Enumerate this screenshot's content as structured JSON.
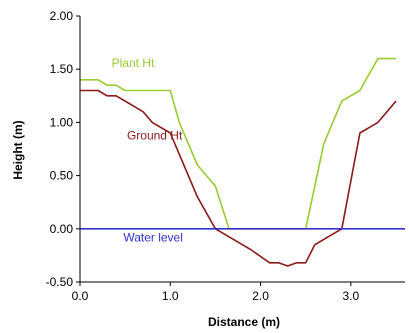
{
  "chart_data": {
    "type": "line",
    "title": "",
    "xlabel": "Distance (m)",
    "ylabel": "Height (m)",
    "xlim": [
      0,
      3.6
    ],
    "ylim": [
      -0.5,
      2.0
    ],
    "x_ticks": [
      0.0,
      1.0,
      2.0,
      3.0
    ],
    "x_tick_labels": [
      "0.0",
      "1.0",
      "2.0",
      "3.0"
    ],
    "y_ticks": [
      -0.5,
      0.0,
      0.5,
      1.0,
      1.5,
      2.0
    ],
    "y_tick_labels": [
      "-0.50",
      "0.00",
      "0.50",
      "1.00",
      "1.50",
      "2.00"
    ],
    "grid": false,
    "legend": "none",
    "series": [
      {
        "name": "Plant Ht",
        "color": "#99cc33",
        "x": [
          0.0,
          0.2,
          0.3,
          0.4,
          0.5,
          0.6,
          0.8,
          1.0,
          1.1,
          1.3,
          1.5,
          1.65,
          1.7,
          2.0,
          2.3,
          2.5,
          2.7,
          2.9,
          3.1,
          3.3,
          3.5
        ],
        "y": [
          1.4,
          1.4,
          1.35,
          1.35,
          1.3,
          1.3,
          1.3,
          1.3,
          1.0,
          0.6,
          0.4,
          0.0,
          0.0,
          0.0,
          0.0,
          0.0,
          0.8,
          1.2,
          1.3,
          1.6,
          1.6
        ]
      },
      {
        "name": "Ground Ht",
        "color": "#8b1a1a",
        "x": [
          0.0,
          0.2,
          0.3,
          0.4,
          0.5,
          0.7,
          0.8,
          1.0,
          1.1,
          1.3,
          1.5,
          1.7,
          1.9,
          2.1,
          2.2,
          2.3,
          2.4,
          2.5,
          2.6,
          2.8,
          2.9,
          3.1,
          3.3,
          3.5
        ],
        "y": [
          1.3,
          1.3,
          1.25,
          1.25,
          1.2,
          1.1,
          1.0,
          0.9,
          0.7,
          0.3,
          0.0,
          -0.1,
          -0.2,
          -0.32,
          -0.32,
          -0.35,
          -0.32,
          -0.32,
          -0.15,
          -0.05,
          0.0,
          0.9,
          1.0,
          1.2
        ]
      },
      {
        "name": "Water level",
        "color": "#3333cc",
        "x": [
          0.0,
          3.6
        ],
        "y": [
          0.0,
          0.0
        ]
      }
    ],
    "annotations": [
      {
        "text": "Plant Ht",
        "color": "#99cc33",
        "x": 0.35,
        "y": 1.52
      },
      {
        "text": "Ground Ht",
        "color": "#8b1a1a",
        "x": 0.52,
        "y": 0.84
      },
      {
        "text": "Water level",
        "color": "#3333cc",
        "x": 0.48,
        "y": -0.12
      }
    ]
  }
}
